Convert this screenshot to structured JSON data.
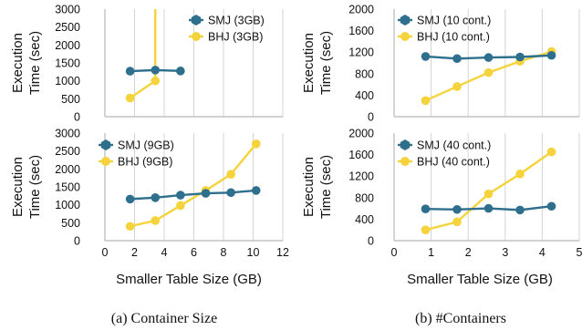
{
  "figure": {
    "captions": [
      "(a) Container Size",
      "(b) #Containers"
    ],
    "shared_xlabels": [
      "Smaller Table Size (GB)",
      "Smaller Table Size (GB)"
    ]
  },
  "colors": {
    "smj": "#2e6f8e",
    "bhj": "#f5d33c",
    "axis": "#b7b7b7",
    "grid": "#d4d4d4"
  },
  "chart_data": [
    {
      "type": "line",
      "ylabel": "Execution Time (sec)",
      "ylim": [
        0,
        3000
      ],
      "yticks": [
        0,
        500,
        1000,
        1500,
        2000,
        2500,
        3000
      ],
      "xlim": [
        0,
        12
      ],
      "xticks": [],
      "grid": "vertical",
      "legend": "top-right",
      "series": [
        {
          "name": "SMJ (3GB)",
          "x": [
            1.7,
            3.4,
            5.1
          ],
          "y": [
            1270,
            1300,
            1275
          ]
        },
        {
          "name": "BHJ (3GB)",
          "x": [
            1.7,
            3.4,
            3.4
          ],
          "y": [
            520,
            1000,
            3000
          ]
        }
      ]
    },
    {
      "type": "line",
      "ylabel": "Execution Time (sec)",
      "ylim": [
        0,
        2000
      ],
      "yticks": [
        0,
        400,
        800,
        1200,
        1600,
        2000
      ],
      "xlim": [
        0,
        5
      ],
      "xticks": [],
      "grid": "vertical",
      "legend": "top-left",
      "series": [
        {
          "name": "SMJ (10 cont.)",
          "x": [
            0.85,
            1.7,
            2.55,
            3.4,
            4.25
          ],
          "y": [
            1120,
            1080,
            1100,
            1110,
            1140
          ]
        },
        {
          "name": "BHJ (10 cont.)",
          "x": [
            0.85,
            1.7,
            2.55,
            3.4,
            4.25
          ],
          "y": [
            300,
            560,
            820,
            1030,
            1210
          ]
        }
      ]
    },
    {
      "type": "line",
      "ylabel": "Execution Time (sec)",
      "ylim": [
        0,
        3000
      ],
      "yticks": [
        0,
        500,
        1000,
        1500,
        2000,
        2500,
        3000
      ],
      "xlim": [
        0,
        12
      ],
      "xticks": [
        0,
        2,
        4,
        6,
        8,
        10,
        12
      ],
      "grid": "vertical",
      "legend": "top-left",
      "series": [
        {
          "name": "SMJ (9GB)",
          "x": [
            1.7,
            3.4,
            5.1,
            6.8,
            8.5,
            10.2
          ],
          "y": [
            1160,
            1200,
            1270,
            1320,
            1340,
            1400
          ]
        },
        {
          "name": "BHJ (9GB)",
          "x": [
            1.7,
            3.4,
            5.1,
            6.8,
            8.5,
            10.2
          ],
          "y": [
            400,
            560,
            980,
            1400,
            1850,
            2700
          ]
        }
      ]
    },
    {
      "type": "line",
      "ylabel": "Execution Time (sec)",
      "ylim": [
        0,
        2000
      ],
      "yticks": [
        0,
        400,
        800,
        1200,
        1600,
        2000
      ],
      "xlim": [
        0,
        5
      ],
      "xticks": [
        0,
        1,
        2,
        3,
        4,
        5
      ],
      "grid": "vertical",
      "legend": "top-left",
      "series": [
        {
          "name": "SMJ (40 cont.)",
          "x": [
            0.85,
            1.7,
            2.55,
            3.4,
            4.25
          ],
          "y": [
            590,
            580,
            600,
            570,
            640
          ]
        },
        {
          "name": "BHJ (40 cont.)",
          "x": [
            0.85,
            1.7,
            2.55,
            3.4,
            4.25
          ],
          "y": [
            200,
            350,
            870,
            1240,
            1650
          ]
        }
      ]
    }
  ]
}
